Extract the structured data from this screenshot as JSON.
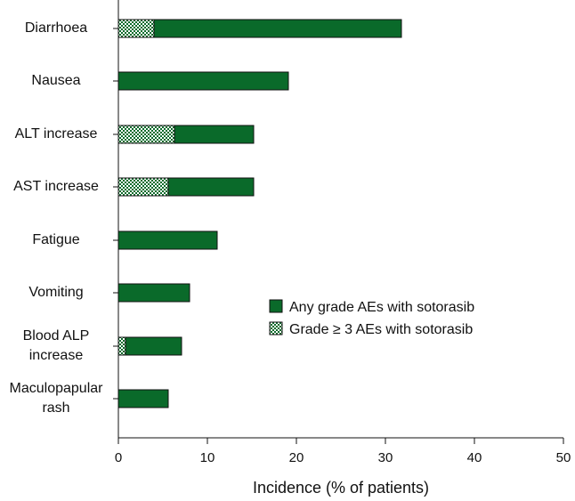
{
  "chart_data": {
    "type": "bar",
    "orientation": "horizontal",
    "stacked": true,
    "categories": [
      "Diarrhoea",
      "Nausea",
      "ALT increase",
      "AST increase",
      "Fatigue",
      "Vomiting",
      "Blood ALP increase",
      "Maculopapular rash"
    ],
    "series": [
      {
        "name": "Any grade AEs with sotorasib",
        "color": "#0a6a2a",
        "pattern": "solid",
        "values": [
          31.8,
          19.1,
          15.2,
          15.2,
          11.1,
          8.0,
          7.1,
          5.6
        ]
      },
      {
        "name": "Grade ≥ 3 AEs with sotorasib",
        "color": "#0a6a2a",
        "pattern": "checker",
        "values": [
          4.0,
          0,
          6.3,
          5.6,
          0,
          0,
          0.8,
          0
        ]
      }
    ],
    "title": "",
    "xlabel": "Incidence (% of patients)",
    "ylabel": "",
    "xlim": [
      0,
      50
    ],
    "xticks": [
      0,
      10,
      20,
      30,
      40,
      50
    ],
    "grid": false,
    "legend_position": "right"
  },
  "category_label_lines": [
    [
      "Diarrhoea"
    ],
    [
      "Nausea"
    ],
    [
      "ALT increase"
    ],
    [
      "AST increase"
    ],
    [
      "Fatigue"
    ],
    [
      "Vomiting"
    ],
    [
      "Blood ALP",
      "increase"
    ],
    [
      "Maculopapular",
      "rash"
    ]
  ]
}
